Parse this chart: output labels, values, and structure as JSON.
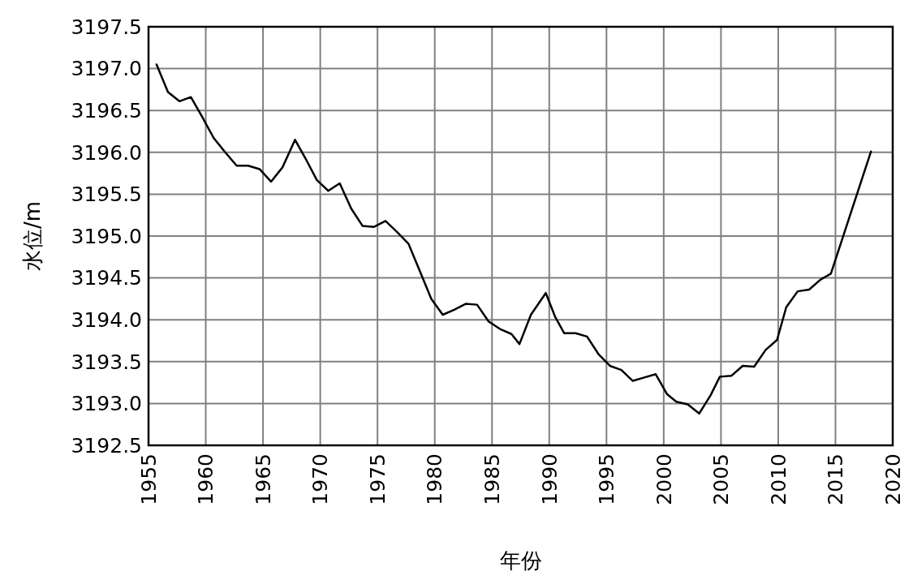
{
  "chart_data": {
    "type": "line",
    "xlabel": "年份",
    "ylabel": "水位/m",
    "x": [
      1955.7,
      1956.7,
      1957.7,
      1958.7,
      1959.7,
      1960.7,
      1961.7,
      1962.7,
      1963.7,
      1964.7,
      1965.7,
      1966.7,
      1967.8,
      1968.7,
      1969.7,
      1970.7,
      1971.7,
      1972.7,
      1973.7,
      1974.7,
      1975.7,
      1976.7,
      1977.7,
      1978.7,
      1979.7,
      1980.7,
      1981.7,
      1982.7,
      1983.7,
      1984.7,
      1985.7,
      1986.7,
      1987.4,
      1988.4,
      1989.7,
      1990.5,
      1991.3,
      1992.3,
      1993.3,
      1994.3,
      1995.3,
      1996.3,
      1997.3,
      1998.3,
      1999.3,
      2000.3,
      2001.1,
      2002.1,
      2003.1,
      2004.1,
      2004.9,
      2005.9,
      2006.9,
      2007.9,
      2008.9,
      2009.9,
      2010.7,
      2011.7,
      2012.7,
      2013.7,
      2014.6,
      2018.1
    ],
    "series": [
      {
        "color": "#000000",
        "values": [
          3197.05,
          3196.72,
          3196.61,
          3196.66,
          3196.42,
          3196.17,
          3196.0,
          3195.84,
          3195.84,
          3195.8,
          3195.65,
          3195.82,
          3196.15,
          3195.93,
          3195.67,
          3195.54,
          3195.63,
          3195.33,
          3195.12,
          3195.11,
          3195.18,
          3195.05,
          3194.91,
          3194.58,
          3194.25,
          3194.06,
          3194.12,
          3194.19,
          3194.18,
          3193.98,
          3193.89,
          3193.83,
          3193.71,
          3194.06,
          3194.32,
          3194.04,
          3193.84,
          3193.84,
          3193.8,
          3193.59,
          3193.45,
          3193.4,
          3193.27,
          3193.31,
          3193.35,
          3193.11,
          3193.02,
          3192.99,
          3192.88,
          3193.1,
          3193.32,
          3193.33,
          3193.45,
          3193.44,
          3193.64,
          3193.76,
          3194.15,
          3194.34,
          3194.36,
          3194.48,
          3194.55,
          3196.01
        ]
      }
    ],
    "xlim": [
      1955,
      2020
    ],
    "xticks": [
      1955,
      1960,
      1965,
      1970,
      1975,
      1980,
      1985,
      1990,
      1995,
      2000,
      2005,
      2010,
      2015,
      2020
    ],
    "ylim": [
      3192.5,
      3197.5
    ],
    "yticks": [
      {
        "value": 3192.5,
        "label": "3192.5"
      },
      {
        "value": 3193,
        "label": "3193.0"
      },
      {
        "value": 3193.5,
        "label": "3193.5"
      },
      {
        "value": 3194,
        "label": "3194.0"
      },
      {
        "value": 3194.5,
        "label": "3194.5"
      },
      {
        "value": 3195,
        "label": "3195.0"
      },
      {
        "value": 3195.5,
        "label": "3195.5"
      },
      {
        "value": 3196,
        "label": "3196.0"
      },
      {
        "value": 3196.5,
        "label": "3196.5"
      },
      {
        "value": 3197,
        "label": "3197.0"
      },
      {
        "value": 3197.5,
        "label": "3197.5"
      }
    ],
    "grid": true,
    "line_style": "solid",
    "marker": "none"
  }
}
